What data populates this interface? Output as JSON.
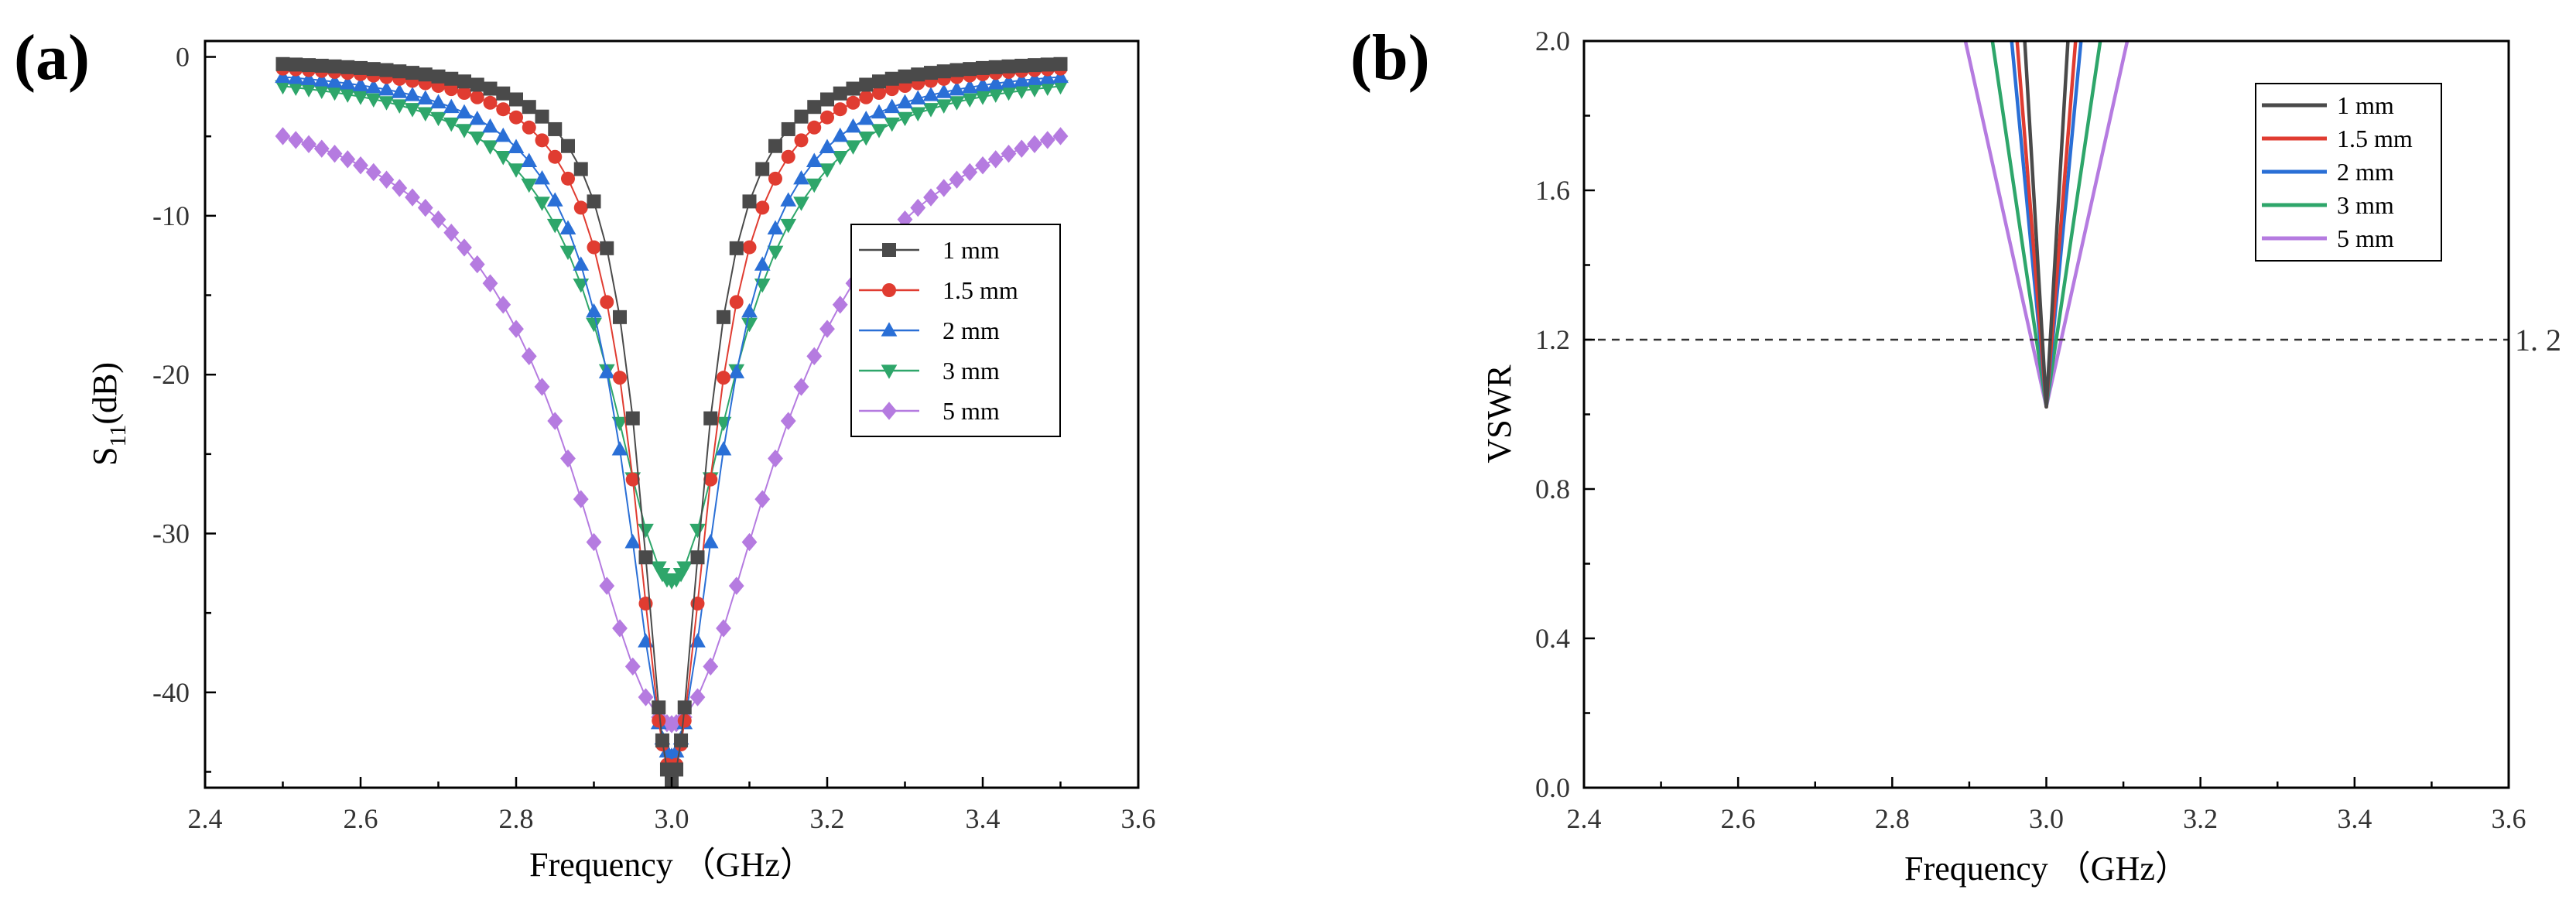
{
  "chart_data": [
    {
      "panel": "(a)",
      "type": "line",
      "markers": true,
      "xlabel": "Frequency （GHz）",
      "ylabel_main": "S",
      "ylabel_sub": "11",
      "ylabel_unit": "(dB)",
      "xlim": [
        2.4,
        3.6
      ],
      "ylim": [
        -46,
        1
      ],
      "xticks": [
        2.4,
        2.6,
        2.8,
        3.0,
        3.2,
        3.4,
        3.6
      ],
      "xtick_labels": [
        "2.4",
        "2.6",
        "2.8",
        "3.0",
        "3.2",
        "3.4",
        "3.6"
      ],
      "yticks": [
        0,
        -10,
        -20,
        -30,
        -40
      ],
      "ytick_labels": [
        "0",
        "-10",
        "-20",
        "-30",
        "-40"
      ],
      "legend_position": "center-right",
      "series": [
        {
          "name": "1 mm",
          "color": "#4a4a4a",
          "marker": "square",
          "min": -45.5,
          "halfwidth": 0.05,
          "offset": 0.0
        },
        {
          "name": "1.5 mm",
          "color": "#e03c31",
          "marker": "circle",
          "min": -45,
          "halfwidth": 0.06,
          "offset": 0.1
        },
        {
          "name": "2 mm",
          "color": "#2a6fd6",
          "marker": "triangle-up",
          "min": -44,
          "halfwidth": 0.075,
          "offset": 0.3
        },
        {
          "name": "3 mm",
          "color": "#2ea66a",
          "marker": "triangle-down",
          "min": -33,
          "halfwidth": 0.1,
          "offset": 0.6
        },
        {
          "name": "5 mm",
          "color": "#b57be0",
          "marker": "diamond",
          "min": -42,
          "halfwidth": 0.16,
          "offset": 1.2
        }
      ],
      "x_range": [
        2.5,
        3.5
      ],
      "points": 61
    },
    {
      "panel": "(b)",
      "type": "line",
      "markers": false,
      "xlabel": "Frequency （GHz）",
      "ylabel": "VSWR",
      "xlim": [
        2.4,
        3.6
      ],
      "ylim": [
        0,
        2.0
      ],
      "xticks": [
        2.4,
        2.6,
        2.8,
        3.0,
        3.2,
        3.4,
        3.6
      ],
      "xtick_labels": [
        "2.4",
        "2.6",
        "2.8",
        "3.0",
        "3.2",
        "3.4",
        "3.6"
      ],
      "yticks": [
        0,
        0.4,
        0.8,
        1.2,
        1.6,
        2.0
      ],
      "ytick_labels": [
        "0.0",
        "0.4",
        "0.8",
        "1.2",
        "1.6",
        "2.0"
      ],
      "reference_line": {
        "y": 1.2,
        "label": "1. 2"
      },
      "legend_position": "top-right",
      "series": [
        {
          "name": "1 mm",
          "color": "#4a4a4a",
          "x_at_2": 0.028
        },
        {
          "name": "1.5 mm",
          "color": "#e03c31",
          "x_at_2": 0.038
        },
        {
          "name": "2 mm",
          "color": "#2a6fd6",
          "x_at_2": 0.045
        },
        {
          "name": "3 mm",
          "color": "#2ea66a",
          "x_at_2": 0.07
        },
        {
          "name": "5 mm",
          "color": "#b57be0",
          "x_at_2": 0.105
        }
      ],
      "min_vswr": 1.02,
      "center": 3.0
    }
  ],
  "panels": {
    "a": {
      "label": "(a)"
    },
    "b": {
      "label": "(b)"
    }
  }
}
